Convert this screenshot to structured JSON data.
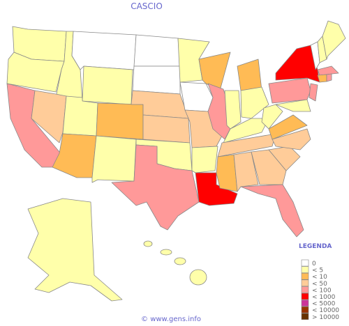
{
  "title": "CASCIO",
  "legend": {
    "title": "LEGENDA",
    "items": [
      {
        "label": "0",
        "color": "#ffffff"
      },
      {
        "label": "< 5",
        "color": "#ffffaa"
      },
      {
        "label": "< 10",
        "color": "#ffbb55"
      },
      {
        "label": "< 50",
        "color": "#ffcc99"
      },
      {
        "label": "< 100",
        "color": "#ff9999"
      },
      {
        "label": "< 1000",
        "color": "#ff0000"
      },
      {
        "label": "< 5000",
        "color": "#cc3399"
      },
      {
        "label": "< 10000",
        "color": "#993300"
      },
      {
        "label": "> 10000",
        "color": "#663300"
      }
    ]
  },
  "footer": "© www.gens.info"
}
